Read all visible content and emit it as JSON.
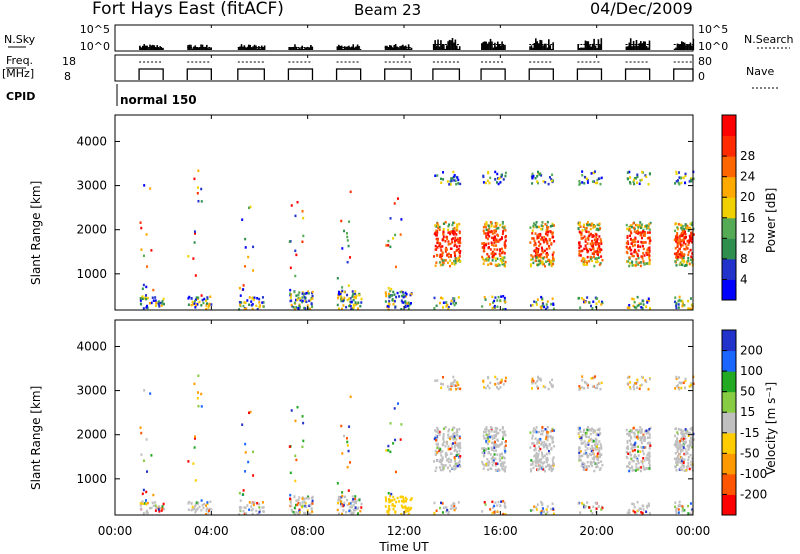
{
  "header": {
    "station": "Fort Hays East (fitACF)",
    "beam": "Beam 23",
    "date": "04/Dec/2009"
  },
  "top_panels": {
    "nsky_label": "N.Sky",
    "nsearch_label": "N.Search",
    "nsky_ticks": [
      "10^5",
      "10^0"
    ],
    "nsearch_ticks": [
      "10^5",
      "10^0"
    ],
    "freq_label_1": "Freq.",
    "freq_label_2": "[MHz]",
    "freq_ticks": [
      "18",
      "8"
    ],
    "nave_label": "Nave",
    "nave_ticks": [
      "80",
      "0"
    ],
    "cpid_label": "CPID",
    "cpid_value": "normal 150"
  },
  "time_axis": {
    "label": "Time UT",
    "ticks": [
      "00:00",
      "04:00",
      "08:00",
      "12:00",
      "16:00",
      "20:00",
      "00:00"
    ]
  },
  "colors": {
    "power_scale": [
      "#0000ff",
      "#2233cc",
      "#2f8f4f",
      "#55aa55",
      "#f0d000",
      "#ffaa00",
      "#ff6600",
      "#ff2a00",
      "#ff0000"
    ],
    "velocity_scale": [
      "#2233cc",
      "#1a66ff",
      "#22aa22",
      "#88cc44",
      "#c0c0c0",
      "#ffcc00",
      "#ff9900",
      "#ff5500",
      "#ff0000"
    ]
  },
  "chart_data": [
    {
      "type": "heatmap",
      "name": "power",
      "ylabel": "Slant Range [km]",
      "xlabel": "",
      "y_ticks": [
        1000,
        2000,
        3000,
        4000
      ],
      "ylim": [
        180,
        4600
      ],
      "xlim_hours": [
        0,
        24
      ],
      "colorbar_label": "Power [dB]",
      "colorbar_ticks": [
        4,
        8,
        12,
        16,
        20,
        24,
        28
      ]
    },
    {
      "type": "heatmap",
      "name": "velocity",
      "ylabel": "Slant Range [km]",
      "xlabel": "Time UT",
      "y_ticks": [
        1000,
        2000,
        3000,
        4000
      ],
      "ylim": [
        180,
        4600
      ],
      "xlim_hours": [
        0,
        24
      ],
      "colorbar_label": "Velocity [m s⁻¹]",
      "colorbar_ticks": [
        200,
        100,
        50,
        15,
        -15,
        -50,
        -100,
        -200
      ]
    }
  ]
}
